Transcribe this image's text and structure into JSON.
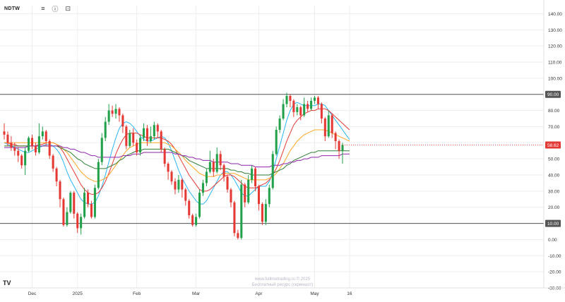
{
  "symbol": "NDTW",
  "toolbar": {
    "menu_icon": "hamburger-menu-icon",
    "info_icon": "info-icon",
    "camera_icon": "camera-icon"
  },
  "watermark": {
    "line1": "www.fullimetrading.ru © 2025",
    "line2": "Бесплатный ресурс (скриншот)"
  },
  "logo_text": "TV",
  "colors": {
    "up": "#22a04a",
    "down": "#e53935",
    "ma_fast": "#29b6f6",
    "ma_red": "#e53935",
    "ma_orange": "#ffa726",
    "ma_green": "#2e7d32",
    "ma_purple": "#8e24aa",
    "grid": "#eeeeee",
    "hline": "#555555",
    "price_tag": "#e53935",
    "level_tag": "#555555"
  },
  "chart_data": {
    "type": "candlestick",
    "title": "NDTW",
    "yaxis_side": "right",
    "ylim": [
      -30,
      145
    ],
    "y_ticks": [
      "140.00",
      "130.00",
      "120.00",
      "110.00",
      "100.00",
      "90.00",
      "80.00",
      "70.00",
      "60.00",
      "50.00",
      "40.00",
      "30.00",
      "20.00",
      "10.00",
      "0.00",
      "-10.00",
      "-20.00",
      "-30.00"
    ],
    "x_ticks": [
      {
        "label": "Dec",
        "index": 8
      },
      {
        "label": "2025",
        "index": 21
      },
      {
        "label": "Feb",
        "index": 38
      },
      {
        "label": "Mar",
        "index": 55
      },
      {
        "label": "Apr",
        "index": 73
      },
      {
        "label": "May",
        "index": 89
      },
      {
        "label": "16",
        "index": 99
      }
    ],
    "horizontal_levels": [
      90.0,
      10.0
    ],
    "level_labels": [
      "90.00",
      "10.00"
    ],
    "last_price": 58.62,
    "last_price_label": "58.62",
    "candles": [
      [
        67.0,
        65.0,
        72.0,
        62.0
      ],
      [
        65.0,
        60.0,
        67.0,
        58.0
      ],
      [
        60.0,
        57.0,
        64.0,
        55.0
      ],
      [
        57.0,
        55.0,
        60.0,
        52.0
      ],
      [
        55.0,
        52.0,
        57.0,
        48.0
      ],
      [
        52.0,
        46.0,
        53.0,
        44.0
      ],
      [
        46.0,
        55.0,
        57.0,
        40.0
      ],
      [
        55.0,
        63.0,
        64.0,
        54.0
      ],
      [
        63.0,
        58.0,
        65.0,
        56.0
      ],
      [
        58.0,
        54.0,
        60.0,
        52.0
      ],
      [
        54.0,
        64.0,
        72.0,
        53.0
      ],
      [
        64.0,
        67.0,
        70.0,
        62.0
      ],
      [
        67.0,
        61.0,
        68.0,
        58.0
      ],
      [
        61.0,
        52.0,
        62.0,
        50.0
      ],
      [
        52.0,
        44.0,
        53.0,
        42.0
      ],
      [
        44.0,
        36.0,
        45.0,
        33.0
      ],
      [
        36.0,
        25.0,
        37.0,
        20.0
      ],
      [
        25.0,
        9.0,
        26.0,
        8.0
      ],
      [
        9.0,
        17.0,
        20.0,
        8.0
      ],
      [
        17.0,
        29.0,
        30.0,
        16.0
      ],
      [
        29.0,
        16.0,
        30.0,
        13.0
      ],
      [
        16.0,
        7.0,
        17.0,
        4.0
      ],
      [
        7.0,
        14.0,
        16.0,
        3.0
      ],
      [
        14.0,
        29.0,
        32.0,
        13.0
      ],
      [
        29.0,
        22.0,
        31.0,
        20.0
      ],
      [
        22.0,
        14.0,
        24.0,
        13.0
      ],
      [
        14.0,
        32.0,
        34.0,
        13.0
      ],
      [
        32.0,
        48.0,
        50.0,
        31.0
      ],
      [
        48.0,
        63.0,
        66.0,
        46.0
      ],
      [
        63.0,
        73.0,
        76.0,
        61.0
      ],
      [
        73.0,
        80.0,
        84.0,
        71.0
      ],
      [
        80.0,
        78.0,
        83.0,
        76.0
      ],
      [
        78.0,
        81.0,
        84.0,
        75.0
      ],
      [
        81.0,
        77.0,
        82.0,
        73.0
      ],
      [
        77.0,
        70.0,
        78.0,
        66.0
      ],
      [
        70.0,
        58.0,
        71.0,
        56.0
      ],
      [
        58.0,
        66.0,
        68.0,
        57.0
      ],
      [
        66.0,
        60.0,
        69.0,
        58.0
      ],
      [
        60.0,
        54.0,
        62.0,
        52.0
      ],
      [
        54.0,
        63.0,
        65.0,
        52.0
      ],
      [
        63.0,
        69.0,
        72.0,
        61.0
      ],
      [
        69.0,
        61.0,
        71.0,
        58.0
      ],
      [
        61.0,
        64.0,
        70.0,
        60.0
      ],
      [
        64.0,
        71.0,
        73.0,
        62.0
      ],
      [
        71.0,
        67.0,
        72.0,
        63.0
      ],
      [
        67.0,
        56.0,
        68.0,
        54.0
      ],
      [
        56.0,
        47.0,
        57.0,
        45.0
      ],
      [
        47.0,
        42.0,
        48.0,
        37.0
      ],
      [
        42.0,
        36.0,
        43.0,
        34.0
      ],
      [
        36.0,
        31.0,
        38.0,
        28.0
      ],
      [
        31.0,
        37.0,
        40.0,
        29.0
      ],
      [
        37.0,
        31.0,
        38.0,
        26.0
      ],
      [
        31.0,
        24.0,
        32.0,
        21.0
      ],
      [
        24.0,
        15.0,
        25.0,
        13.0
      ],
      [
        15.0,
        9.0,
        16.0,
        8.0
      ],
      [
        9.0,
        14.0,
        16.0,
        8.0
      ],
      [
        14.0,
        29.0,
        31.0,
        13.0
      ],
      [
        29.0,
        35.0,
        37.0,
        27.0
      ],
      [
        35.0,
        42.0,
        44.0,
        33.0
      ],
      [
        42.0,
        48.0,
        55.0,
        41.0
      ],
      [
        48.0,
        42.0,
        50.0,
        39.0
      ],
      [
        42.0,
        53.0,
        57.0,
        41.0
      ],
      [
        53.0,
        46.0,
        55.0,
        43.0
      ],
      [
        46.0,
        39.0,
        47.0,
        36.0
      ],
      [
        39.0,
        31.0,
        40.0,
        29.0
      ],
      [
        31.0,
        23.0,
        32.0,
        20.0
      ],
      [
        23.0,
        4.0,
        24.0,
        2.0
      ],
      [
        4.0,
        1.0,
        6.0,
        0.0
      ],
      [
        1.0,
        34.0,
        37.0,
        0.0
      ],
      [
        34.0,
        23.0,
        35.0,
        20.0
      ],
      [
        23.0,
        37.0,
        40.0,
        22.0
      ],
      [
        37.0,
        44.0,
        46.0,
        35.0
      ],
      [
        44.0,
        33.0,
        45.0,
        30.0
      ],
      [
        33.0,
        22.0,
        34.0,
        18.0
      ],
      [
        22.0,
        11.0,
        23.0,
        9.0
      ],
      [
        11.0,
        22.0,
        25.0,
        9.0
      ],
      [
        22.0,
        32.0,
        34.0,
        20.0
      ],
      [
        32.0,
        53.0,
        55.0,
        31.0
      ],
      [
        53.0,
        68.0,
        70.0,
        52.0
      ],
      [
        68.0,
        75.0,
        77.0,
        66.0
      ],
      [
        75.0,
        84.0,
        87.0,
        74.0
      ],
      [
        84.0,
        89.0,
        91.0,
        82.0
      ],
      [
        89.0,
        86.0,
        90.0,
        82.0
      ],
      [
        86.0,
        79.0,
        87.0,
        76.0
      ],
      [
        79.0,
        82.0,
        84.0,
        77.0
      ],
      [
        82.0,
        77.0,
        83.0,
        74.0
      ],
      [
        77.0,
        84.0,
        88.0,
        76.0
      ],
      [
        84.0,
        81.0,
        86.0,
        79.0
      ],
      [
        81.0,
        86.0,
        88.0,
        80.0
      ],
      [
        86.0,
        88.0,
        89.0,
        84.0
      ],
      [
        88.0,
        84.0,
        89.0,
        81.0
      ],
      [
        84.0,
        75.0,
        85.0,
        72.0
      ],
      [
        75.0,
        64.0,
        76.0,
        61.0
      ],
      [
        64.0,
        77.0,
        80.0,
        63.0
      ],
      [
        77.0,
        66.0,
        78.0,
        63.0
      ],
      [
        66.0,
        61.0,
        67.0,
        56.0
      ],
      [
        61.0,
        55.0,
        62.0,
        50.0
      ],
      [
        55.0,
        58.62,
        60.0,
        47.0
      ]
    ],
    "series": [
      {
        "name": "",
        "color_key": "ma_fast",
        "values": [
          60,
          59,
          58,
          57,
          56,
          55,
          54,
          54,
          55,
          56,
          57,
          58,
          59,
          59,
          58,
          56,
          53,
          48,
          42,
          37,
          33,
          29,
          25,
          23,
          22,
          22,
          23,
          27,
          33,
          40,
          48,
          56,
          63,
          69,
          72,
          73,
          72,
          70,
          67,
          64,
          62,
          61,
          61,
          62,
          63,
          64,
          63,
          60,
          55,
          49,
          43,
          38,
          34,
          30,
          27,
          24,
          22,
          22,
          24,
          28,
          32,
          36,
          40,
          42,
          42,
          40,
          37,
          33,
          29,
          27,
          27,
          29,
          31,
          33,
          33,
          33,
          36,
          42,
          50,
          58,
          66,
          74,
          80,
          84,
          85,
          84,
          83,
          83,
          83,
          83,
          84,
          84,
          83,
          80,
          77,
          74,
          71,
          68,
          65,
          62
        ]
      },
      {
        "name": "",
        "color_key": "ma_red",
        "values": [
          60,
          60,
          59,
          59,
          58,
          58,
          58,
          58,
          58,
          58,
          59,
          59,
          60,
          60,
          60,
          59,
          57,
          54,
          50,
          46,
          42,
          38,
          34,
          31,
          29,
          28,
          28,
          29,
          32,
          36,
          41,
          47,
          53,
          58,
          62,
          65,
          66,
          66,
          66,
          65,
          64,
          63,
          63,
          63,
          63,
          63,
          62,
          61,
          59,
          56,
          52,
          48,
          44,
          40,
          37,
          34,
          31,
          30,
          30,
          31,
          33,
          35,
          37,
          39,
          40,
          40,
          39,
          37,
          35,
          33,
          32,
          32,
          32,
          33,
          34,
          35,
          37,
          40,
          44,
          49,
          55,
          61,
          66,
          71,
          74,
          76,
          78,
          79,
          80,
          80,
          81,
          81,
          81,
          80,
          78,
          76,
          74,
          72,
          70,
          68
        ]
      },
      {
        "name": "",
        "color_key": "ma_orange",
        "values": [
          60,
          60,
          60,
          60,
          60,
          60,
          60,
          60,
          60,
          60,
          60,
          60,
          60,
          60,
          60,
          59,
          58,
          56,
          54,
          51,
          48,
          45,
          42,
          40,
          38,
          37,
          36,
          36,
          37,
          38,
          40,
          43,
          46,
          49,
          52,
          55,
          57,
          58,
          59,
          60,
          60,
          60,
          60,
          60,
          60,
          60,
          60,
          59,
          58,
          56,
          54,
          52,
          49,
          47,
          45,
          43,
          41,
          40,
          39,
          39,
          39,
          40,
          40,
          41,
          41,
          41,
          41,
          40,
          39,
          38,
          37,
          37,
          37,
          37,
          37,
          37,
          38,
          39,
          41,
          44,
          47,
          51,
          55,
          58,
          61,
          63,
          65,
          66,
          67,
          68,
          68,
          68,
          68,
          67,
          66,
          65,
          64,
          63,
          62,
          61
        ]
      },
      {
        "name": "",
        "color_key": "ma_green",
        "values": [
          58,
          58,
          58,
          58,
          58,
          58,
          58,
          58,
          58,
          58,
          58,
          58,
          58,
          58,
          58,
          58,
          57,
          56,
          55,
          54,
          52,
          50,
          49,
          47,
          46,
          45,
          44,
          44,
          44,
          44,
          45,
          46,
          47,
          49,
          50,
          52,
          53,
          54,
          55,
          55,
          56,
          56,
          56,
          56,
          56,
          56,
          56,
          56,
          55,
          54,
          53,
          52,
          51,
          49,
          48,
          47,
          46,
          45,
          44,
          44,
          44,
          44,
          44,
          44,
          44,
          43,
          43,
          42,
          42,
          41,
          41,
          40,
          40,
          40,
          40,
          40,
          40,
          41,
          42,
          43,
          44,
          46,
          47,
          49,
          50,
          51,
          52,
          53,
          54,
          54,
          55,
          55,
          55,
          55,
          55,
          55,
          55,
          55,
          55,
          55
        ]
      },
      {
        "name": "",
        "color_key": "ma_purple",
        "values": [
          57,
          57,
          57,
          57,
          57,
          57,
          57,
          58,
          58,
          58,
          58,
          58,
          58,
          58,
          58,
          58,
          58,
          57,
          57,
          56,
          56,
          55,
          54,
          54,
          53,
          52,
          52,
          51,
          51,
          51,
          51,
          51,
          51,
          51,
          52,
          52,
          52,
          53,
          53,
          53,
          54,
          54,
          54,
          54,
          54,
          54,
          54,
          54,
          54,
          53,
          53,
          52,
          52,
          51,
          51,
          50,
          50,
          49,
          49,
          49,
          48,
          48,
          48,
          48,
          48,
          47,
          47,
          47,
          46,
          46,
          46,
          46,
          45,
          45,
          45,
          45,
          45,
          46,
          46,
          46,
          47,
          47,
          48,
          48,
          49,
          49,
          50,
          50,
          51,
          51,
          51,
          52,
          52,
          52,
          52,
          52,
          52,
          53,
          53,
          53
        ]
      }
    ]
  }
}
